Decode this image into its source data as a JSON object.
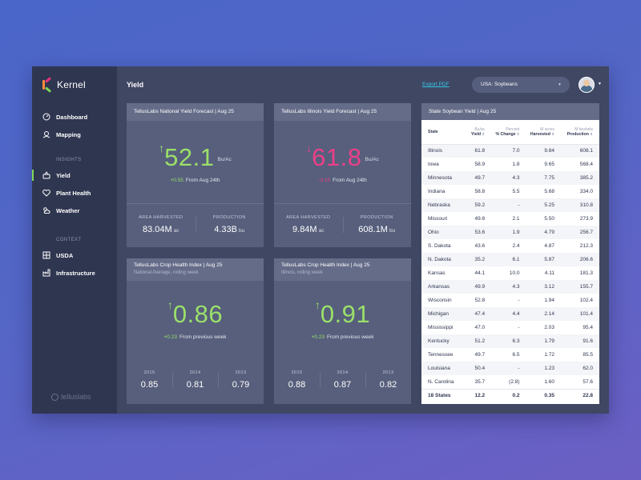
{
  "brand": {
    "name": "Kernel"
  },
  "nav": {
    "items": [
      {
        "label": "Dashboard"
      },
      {
        "label": "Mapping"
      }
    ],
    "insights_label": "INSIGHTS",
    "insights": [
      {
        "label": "Yield",
        "active": true
      },
      {
        "label": "Plant Health"
      },
      {
        "label": "Weather"
      }
    ],
    "context_label": "CONTEXT",
    "context": [
      {
        "label": "USDA"
      },
      {
        "label": "Infrastructure"
      }
    ],
    "footer": "telluslabs"
  },
  "header": {
    "title": "Yield",
    "export_label": "Export PDF",
    "select_value": "USA: Soybeans"
  },
  "colors": {
    "up": "#9be06a",
    "down": "#ec3f89",
    "accent": "#36c6e8"
  },
  "cards": {
    "national_yield": {
      "title": "TellusLabs National Yield Forecast | Aug 25",
      "value": "52.1",
      "unit": "Bu/Ac",
      "change": "+0.55",
      "change_text": "From Aug 24th",
      "stat1_label": "AREA HARVESTED",
      "stat1_value": "83.04M",
      "stat1_unit": "ac",
      "stat2_label": "PRODUCTION",
      "stat2_value": "4.33B",
      "stat2_unit": "bu"
    },
    "illinois_yield": {
      "title": "TellusLabs Illinois Yield Forecast | Aug 25",
      "value": "61.8",
      "unit": "Bu/Ac",
      "change": "-0.15",
      "change_text": "From Aug 24th",
      "stat1_label": "AREA HARVESTED",
      "stat1_value": "9.84M",
      "stat1_unit": "ac",
      "stat2_label": "PRODUCTION",
      "stat2_value": "608.1M",
      "stat2_unit": "bu"
    },
    "national_health": {
      "title": "TellusLabs Crop Health Index | Aug 25",
      "subtitle": "National Average, rolling week",
      "value": "0.86",
      "change": "+0.23",
      "change_text": "From previous week",
      "years": [
        {
          "year": "2015",
          "value": "0.85"
        },
        {
          "year": "2014",
          "value": "0.81"
        },
        {
          "year": "2013",
          "value": "0.79"
        }
      ]
    },
    "illinois_health": {
      "title": "TellusLabs Crop Health Index | Aug 25",
      "subtitle": "Illinois, rolling week",
      "value": "0.91",
      "change": "+0.23",
      "change_text": "From previous week",
      "years": [
        {
          "year": "2015",
          "value": "0.88"
        },
        {
          "year": "2014",
          "value": "0.87"
        },
        {
          "year": "2013",
          "value": "0.82"
        }
      ]
    }
  },
  "state_table": {
    "title": "State Soybean Yield | Aug 25",
    "columns": [
      {
        "top": "",
        "bottom": "State"
      },
      {
        "top": "Bu/ac",
        "bottom": "Yield"
      },
      {
        "top": "Percent",
        "bottom": "% Change"
      },
      {
        "top": "M acres",
        "bottom": "Harvested"
      },
      {
        "top": "M bushels",
        "bottom": "Production"
      }
    ],
    "rows": [
      [
        "Illinois",
        "61.8",
        "7.0",
        "9.84",
        "608.1"
      ],
      [
        "Iowa",
        "58.9",
        "1.8",
        "9.65",
        "568.4"
      ],
      [
        "Minnesota",
        "49.7",
        "4.3",
        "7.75",
        "385.2"
      ],
      [
        "Indiana",
        "58.8",
        "5.5",
        "5.68",
        "334.0"
      ],
      [
        "Nebraska",
        "59.2",
        "-",
        "5.25",
        "310.8"
      ],
      [
        "Missouri",
        "49.8",
        "2.1",
        "5.50",
        "273.9"
      ],
      [
        "Ohio",
        "53.6",
        "1.9",
        "4.79",
        "256.7"
      ],
      [
        "S. Dakota",
        "43.6",
        "2.4",
        "4.87",
        "212.3"
      ],
      [
        "N. Dakota",
        "35.2",
        "6.1",
        "5.87",
        "206.6"
      ],
      [
        "Kansas",
        "44.1",
        "10.0",
        "4.11",
        "181.3"
      ],
      [
        "Arkansas",
        "49.9",
        "4.3",
        "3.12",
        "155.7"
      ],
      [
        "Wisconsin",
        "52.8",
        "-",
        "1.94",
        "102.4"
      ],
      [
        "Michigan",
        "47.4",
        "4.4",
        "2.14",
        "101.4"
      ],
      [
        "Mississippi",
        "47.0",
        "-",
        "2.03",
        "95.4"
      ],
      [
        "Kentucky",
        "51.2",
        "6.3",
        "1.79",
        "91.6"
      ],
      [
        "Tennessee",
        "49.7",
        "6.5",
        "1.72",
        "85.5"
      ],
      [
        "Louisiana",
        "50.4",
        "-",
        "1.23",
        "62.0"
      ],
      [
        "N. Carolina",
        "35.7",
        "(2.8)",
        "1.60",
        "57.6"
      ]
    ],
    "total": [
      "18 States",
      "12.2",
      "0.2",
      "0.35",
      "22.8"
    ]
  }
}
